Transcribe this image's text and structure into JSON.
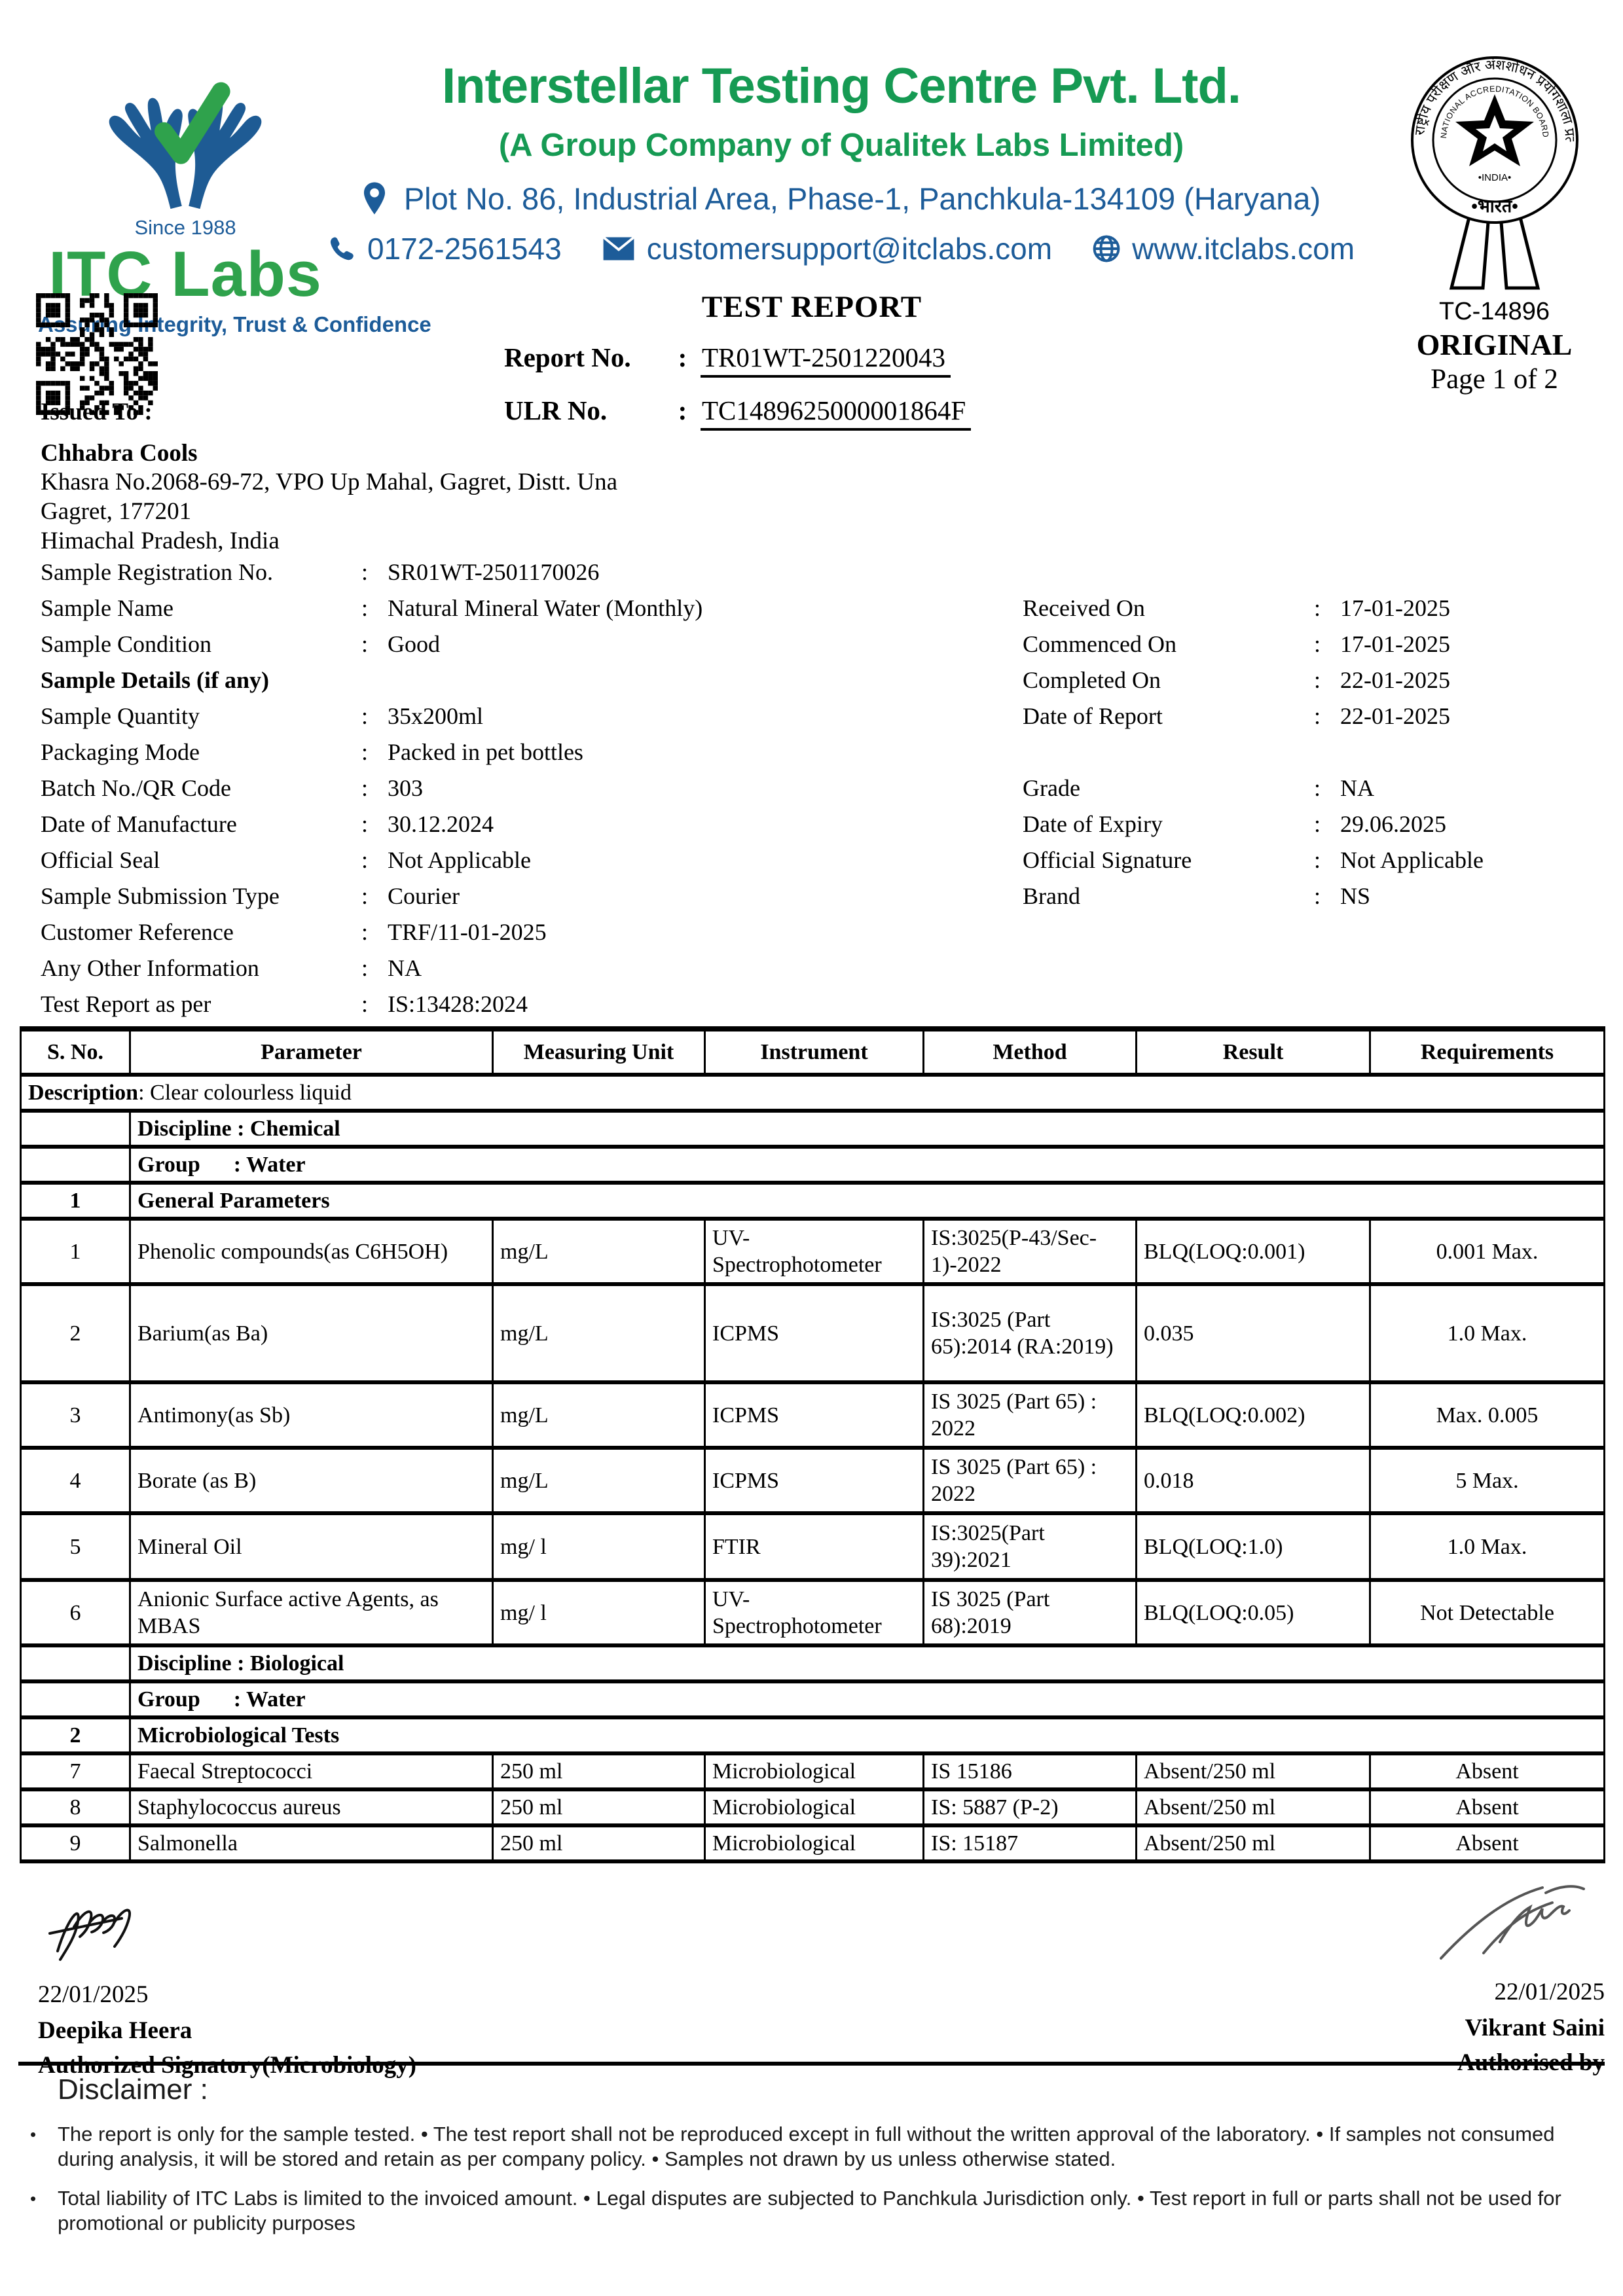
{
  "colors": {
    "brand_green": "#169a53",
    "logo_green": "#2fa24c",
    "brand_blue": "#1d5c99",
    "line_black": "#000000"
  },
  "punct": {
    "colon": ":",
    "bullet": "•"
  },
  "header": {
    "logo": {
      "since": "Since 1988",
      "name": "ITC Labs",
      "tagline": "Assuring Integrity, Trust & Confidence"
    },
    "company_name": "Interstellar Testing Centre Pvt. Ltd.",
    "subtitle": "(A Group Company of Qualitek Labs Limited)",
    "address": "Plot No. 86, Industrial Area, Phase-1, Panchkula-134109 (Haryana)",
    "phone": "0172-2561543",
    "email": "customersupport@itclabs.com",
    "website": "www.itclabs.com",
    "seal": {
      "ring_text_hindi": "राष्ट्रीय परीक्षण और अंशशोधन प्रयोगशाला प्रत्यायन बोर्ड",
      "ring_text_english": "NATIONAL ACCREDITATION BOARD FOR TESTING AND CALIBRATION LABORATORIES",
      "india_english": "•INDIA•",
      "india_hindi": "•भारत•",
      "code": "TC-14896",
      "copy_type": "ORIGINAL",
      "page": "Page 1 of 2"
    }
  },
  "report": {
    "title": "TEST REPORT",
    "report_no_label": "Report No.",
    "report_no": "TR01WT-2501220043",
    "ulr_label": "ULR No.",
    "ulr_no": "TC1489625000001864F"
  },
  "issued_to": {
    "label": "Issued To :",
    "name": "Chhabra Cools",
    "address_line1": "Khasra No.2068-69-72, VPO Up Mahal, Gagret, Distt. Una",
    "address_line2": "Gagret, 177201",
    "address_line3": "Himachal Pradesh, India"
  },
  "fields_left": [
    {
      "label": "Sample Registration No.",
      "value": "SR01WT-2501170026"
    },
    {
      "label": "Sample Name",
      "value": "Natural Mineral Water (Monthly)"
    },
    {
      "label": "Sample Condition",
      "value": "Good"
    },
    {
      "label": "Sample Details (if any)",
      "value": null,
      "bold": true
    },
    {
      "label": "Sample Quantity",
      "value": "35x200ml"
    },
    {
      "label": "Packaging Mode",
      "value": "Packed in pet bottles"
    },
    {
      "label": "Batch No./QR Code",
      "value": "303"
    },
    {
      "label": "Date of Manufacture",
      "value": "30.12.2024"
    },
    {
      "label": "Official Seal",
      "value": "Not Applicable"
    },
    {
      "label": "Sample Submission Type",
      "value": "Courier"
    },
    {
      "label": "Customer Reference",
      "value": "TRF/11-01-2025"
    },
    {
      "label": "Any Other Information",
      "value": "NA"
    },
    {
      "label": "Test Report as per",
      "value": "IS:13428:2024"
    }
  ],
  "fields_right": [
    null,
    {
      "label": "Received On",
      "value": "17-01-2025"
    },
    {
      "label": "Commenced On",
      "value": "17-01-2025"
    },
    {
      "label": "Completed On",
      "value": "22-01-2025"
    },
    {
      "label": "Date of Report",
      "value": "22-01-2025"
    },
    null,
    {
      "label": "Grade",
      "value": "NA"
    },
    {
      "label": "Date of Expiry",
      "value": "29.06.2025"
    },
    {
      "label": "Official Signature",
      "value": "Not Applicable"
    },
    {
      "label": "Brand",
      "value": "NS"
    },
    null,
    null,
    null
  ],
  "table": {
    "headers": [
      "S. No.",
      "Parameter",
      "Measuring Unit",
      "Instrument",
      "Method",
      "Result",
      "Requirements"
    ],
    "rows": [
      {
        "type": "description",
        "label": "Description",
        "value": ": Clear colourless liquid"
      },
      {
        "type": "discipline",
        "text": "Discipline : Chemical"
      },
      {
        "type": "group",
        "text": "Group      : Water"
      },
      {
        "type": "section",
        "sno": "1",
        "text": "General Parameters"
      },
      {
        "type": "row",
        "sno": "1",
        "parameter": "Phenolic compounds(as C6H5OH)",
        "unit": "mg/L",
        "instrument": "UV-Spectrophotometer",
        "method": "IS:3025(P-43/Sec-1)-2022",
        "result": "BLQ(LOQ:0.001)",
        "requirement": "0.001 Max."
      },
      {
        "type": "row",
        "sno": "2",
        "parameter": "Barium(as Ba)",
        "unit": "mg/L",
        "instrument": "ICPMS",
        "method": "IS:3025 (Part 65):2014 (RA:2019)",
        "result": "0.035",
        "requirement": "1.0 Max."
      },
      {
        "type": "row",
        "sno": "3",
        "parameter": "Antimony(as Sb)",
        "unit": "mg/L",
        "instrument": "ICPMS",
        "method": "IS 3025 (Part 65) : 2022",
        "result": "BLQ(LOQ:0.002)",
        "requirement": "Max. 0.005"
      },
      {
        "type": "row",
        "sno": "4",
        "parameter": "Borate (as B)",
        "unit": "mg/L",
        "instrument": "ICPMS",
        "method": "IS 3025 (Part 65) : 2022",
        "result": "0.018",
        "requirement": "5 Max."
      },
      {
        "type": "row",
        "sno": "5",
        "parameter": "Mineral Oil",
        "unit": "mg/ l",
        "instrument": "FTIR",
        "method": "IS:3025(Part 39):2021",
        "result": "BLQ(LOQ:1.0)",
        "requirement": "1.0 Max."
      },
      {
        "type": "row",
        "sno": "6",
        "parameter": "Anionic Surface active Agents, as MBAS",
        "unit": "mg/ l",
        "instrument": "UV-Spectrophotometer",
        "method": "IS 3025 (Part 68):2019",
        "result": "BLQ(LOQ:0.05)",
        "requirement": "Not Detectable"
      },
      {
        "type": "discipline",
        "text": "Discipline : Biological"
      },
      {
        "type": "group",
        "text": "Group      : Water"
      },
      {
        "type": "section",
        "sno": "2",
        "text": "Microbiological Tests"
      },
      {
        "type": "row",
        "sno": "7",
        "parameter": "Faecal Streptococci",
        "unit": "250 ml",
        "instrument": "Microbiological",
        "method": "IS 15186",
        "result": "Absent/250 ml",
        "requirement": "Absent"
      },
      {
        "type": "row",
        "sno": "8",
        "parameter": "Staphylococcus aureus",
        "unit": "250 ml",
        "instrument": "Microbiological",
        "method": "IS: 5887 (P-2)",
        "result": "Absent/250 ml",
        "requirement": "Absent"
      },
      {
        "type": "row",
        "sno": "9",
        "parameter": "Salmonella",
        "unit": "250 ml",
        "instrument": "Microbiological",
        "method": "IS: 15187",
        "result": "Absent/250 ml",
        "requirement": "Absent"
      }
    ]
  },
  "signatures": {
    "left": {
      "date": "22/01/2025",
      "name": "Deepika Heera",
      "role": "Authorized Signatory(Microbiology)"
    },
    "right": {
      "date": "22/01/2025",
      "name": "Vikrant Saini",
      "role": "Authorised by"
    }
  },
  "disclaimer": {
    "heading": "Disclaimer :",
    "bullets": [
      "The report is only for the sample tested.  • The test report shall not be reproduced except in full without the written approval of the laboratory.  • If samples not consumed during analysis, it will be stored and retain as per company policy. • Samples not drawn by us unless otherwise stated.",
      "Total liability of ITC Labs is limited to the invoiced amount. • Legal disputes are subjected to Panchkula Jurisdiction only. • Test report in full or parts shall not be used for promotional or publicity purposes"
    ]
  }
}
